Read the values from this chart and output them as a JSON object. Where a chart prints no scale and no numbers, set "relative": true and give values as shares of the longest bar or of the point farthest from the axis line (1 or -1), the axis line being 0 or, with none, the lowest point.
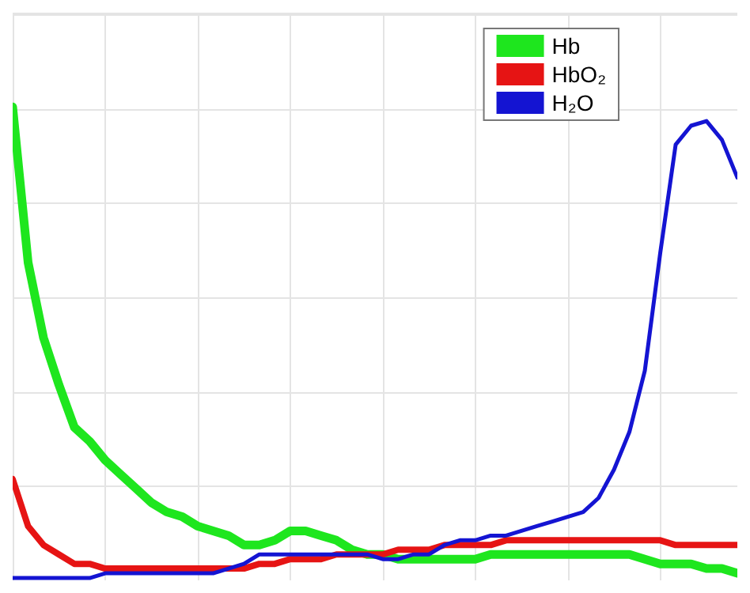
{
  "chart_data": {
    "type": "line",
    "relative": true,
    "grid": true,
    "legend": "top right",
    "marker": "none",
    "line_style": "solid",
    "categories": [
      null,
      null,
      null,
      null,
      null,
      null,
      null,
      null,
      null,
      null,
      null,
      null,
      null,
      null,
      null,
      null,
      null,
      null,
      null,
      null,
      null,
      null,
      null,
      null,
      null,
      null,
      null,
      null,
      null,
      null,
      null,
      null,
      null,
      null,
      null,
      null,
      null,
      null,
      null,
      null,
      null,
      null,
      null,
      null,
      null,
      null,
      null,
      null
    ],
    "series": [
      {
        "name": "Hb",
        "color": "#1ee61e",
        "values": [
          1.0,
          0.67,
          0.51,
          0.41,
          0.32,
          0.29,
          0.25,
          0.22,
          0.19,
          0.16,
          0.14,
          0.13,
          0.11,
          0.1,
          0.09,
          0.07,
          0.07,
          0.08,
          0.1,
          0.1,
          0.09,
          0.08,
          0.06,
          0.05,
          0.05,
          0.04,
          0.04,
          0.04,
          0.04,
          0.04,
          0.04,
          0.05,
          0.05,
          0.05,
          0.05,
          0.05,
          0.05,
          0.05,
          0.05,
          0.05,
          0.05,
          0.04,
          0.03,
          0.03,
          0.03,
          0.02,
          0.02,
          0.01
        ]
      },
      {
        "name": "HbO₂",
        "color": "#e61414",
        "values": [
          0.21,
          0.11,
          0.07,
          0.05,
          0.03,
          0.03,
          0.02,
          0.02,
          0.02,
          0.02,
          0.02,
          0.02,
          0.02,
          0.02,
          0.02,
          0.02,
          0.03,
          0.03,
          0.04,
          0.04,
          0.04,
          0.05,
          0.05,
          0.05,
          0.05,
          0.06,
          0.06,
          0.06,
          0.07,
          0.07,
          0.07,
          0.07,
          0.08,
          0.08,
          0.08,
          0.08,
          0.08,
          0.08,
          0.08,
          0.08,
          0.08,
          0.08,
          0.08,
          0.07,
          0.07,
          0.07,
          0.07,
          0.07
        ]
      },
      {
        "name": "H₂O",
        "color": "#1414d2",
        "values": [
          0.0,
          0.0,
          0.0,
          0.0,
          0.0,
          0.0,
          0.01,
          0.01,
          0.01,
          0.01,
          0.01,
          0.01,
          0.01,
          0.01,
          0.02,
          0.03,
          0.05,
          0.05,
          0.05,
          0.05,
          0.05,
          0.05,
          0.05,
          0.05,
          0.04,
          0.04,
          0.05,
          0.05,
          0.07,
          0.08,
          0.08,
          0.09,
          0.09,
          0.1,
          0.11,
          0.12,
          0.13,
          0.14,
          0.17,
          0.23,
          0.31,
          0.44,
          0.69,
          0.92,
          0.96,
          0.97,
          0.93,
          0.85
        ]
      }
    ]
  }
}
